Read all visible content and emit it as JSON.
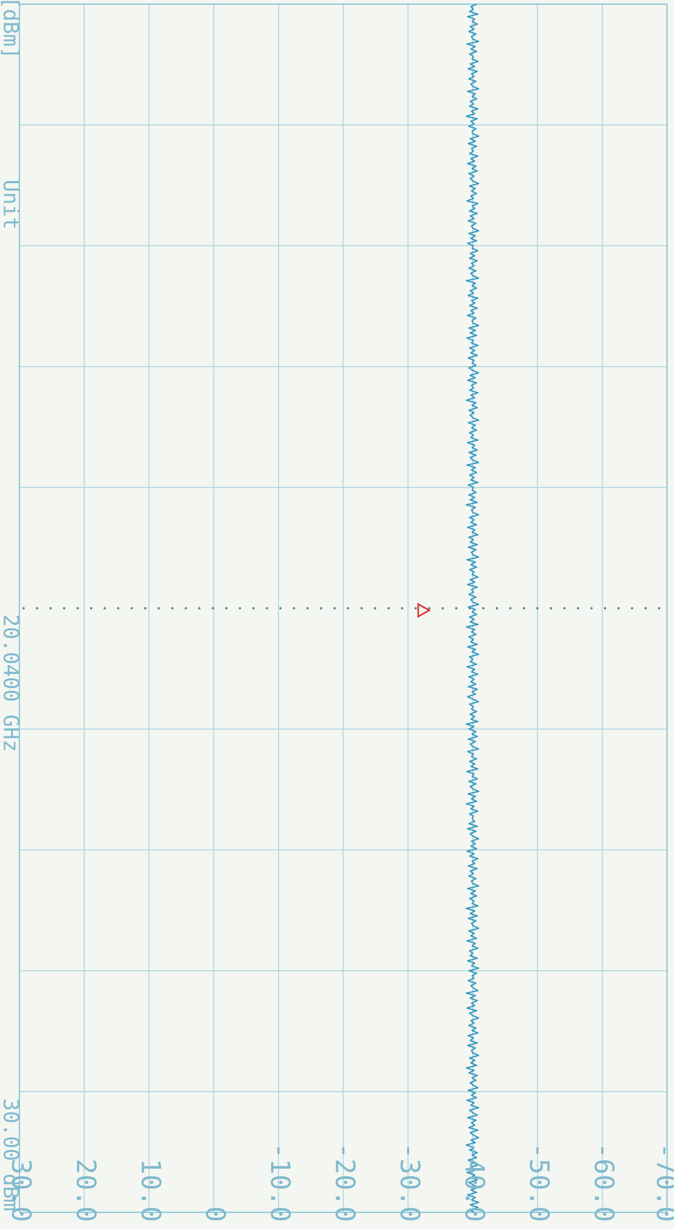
{
  "header": {
    "ref_level": "30.00 dBm",
    "center_freq": "20.0400 GHz",
    "unit": "Unit",
    "unit_value": "[dBm]"
  },
  "chart_data": {
    "type": "line",
    "orientation": "rotated-90-clockwise",
    "title": "",
    "ylabel": "",
    "xlabel": "",
    "ylim": [
      -70,
      30
    ],
    "yticks": [
      "30.0",
      "20.0",
      "10.0",
      "0",
      "-10.0",
      "-20.0",
      "-30.0",
      "-40.0",
      "-50.0",
      "-60.0",
      "-70.0"
    ],
    "x_divisions": 10,
    "grid": true,
    "trace_color": "#2f95c2",
    "grid_color": "#a9d4e2",
    "marker_color": "#e2302d",
    "series": [
      {
        "values": [
          -40.2,
          -39.5,
          -40.8,
          -39.6,
          -40.9,
          -39.8,
          -40.4,
          -39.2,
          -40.6,
          -39.7,
          -40.9,
          -40.1,
          -39.4,
          -40.7,
          -39.8,
          -40.3,
          -39.1,
          -40.5,
          -39.6,
          -40.8,
          -40.0,
          -39.3,
          -40.6,
          -39.9,
          -40.7,
          -39.5,
          -40.2,
          -39.0,
          -40.4,
          -39.7,
          -40.9,
          -40.1,
          -39.6,
          -40.8,
          -39.4,
          -40.3,
          -39.8,
          -40.5,
          -39.2,
          -40.7,
          -40.0,
          -39.5,
          -40.9,
          -39.7,
          -40.2,
          -39.1,
          -40.6,
          -39.8,
          -40.4,
          -39.3,
          -40.8,
          -40.1,
          -39.6,
          -40.5,
          -39.9,
          -40.7,
          -39.4,
          -40.2,
          -39.0,
          -40.6,
          -39.7,
          -40.3,
          -39.5,
          -40.9,
          -40.0,
          -39.8,
          -40.4,
          -39.2,
          -40.7,
          -39.6,
          -40.1,
          -39.3,
          -40.8,
          -39.9,
          -40.5,
          -39.4,
          -40.2,
          -39.7,
          -40.9,
          -40.0,
          -39.5,
          -40.6,
          -39.1,
          -40.3,
          -39.8,
          -40.7,
          -39.6,
          -40.4,
          -39.0,
          -40.8,
          -40.1,
          -39.7,
          -40.5,
          -39.3,
          -40.2,
          -39.9,
          -40.6,
          -39.4,
          -40.9,
          -39.8,
          -40.3,
          -39.2,
          -40.7,
          -39.6,
          -40.0,
          -39.5,
          -40.8,
          -39.9,
          -40.4,
          -39.1,
          -40.6,
          -39.7,
          -40.2,
          -39.4,
          -40.9,
          -40.1,
          -39.8,
          -40.5,
          -39.3,
          -40.7,
          -39.6,
          -40.3,
          -39.0,
          -40.8,
          -39.9,
          -40.2,
          -39.5,
          -40.6,
          -39.7,
          -40.4,
          -39.2,
          -40.9,
          -40.0,
          -39.8,
          -40.5,
          -39.4,
          -40.1,
          -39.6,
          -40.7,
          -39.3,
          -40.3,
          -39.9,
          -40.8,
          -39.5,
          -40.2,
          -39.1,
          -40.6,
          -39.7,
          -40.4,
          -39.8,
          -40.9,
          -40.0,
          -39.6,
          -40.5,
          -39.2,
          -40.7,
          -39.4,
          -40.3,
          -39.9,
          -40.1,
          -39.5,
          -40.8,
          -39.7,
          -40.2,
          -39.0,
          -40.6,
          -39.8,
          -40.4,
          -39.3,
          -40.9,
          -40.0,
          -39.6,
          -40.5,
          -39.4,
          -40.7,
          -39.9,
          -40.2,
          -39.1,
          -40.8,
          -39.7,
          -40.3,
          -39.5,
          -40.6,
          -39.8,
          -40.1,
          -39.2,
          -40.9,
          -40.0,
          -39.6,
          -40.4,
          -39.3,
          -40.7,
          -39.9,
          -40.5,
          -39.4,
          -40.2,
          -39.0,
          -40.8,
          -39.7,
          -40.3,
          -39.6,
          -40.6,
          -39.8,
          -40.1,
          -39.5,
          -40.9,
          -40.0,
          -39.2,
          -40.4,
          -39.9,
          -40.7,
          -39.3,
          -40.5,
          -39.7,
          -40.2,
          -39.4,
          -40.8,
          -39.8,
          -40.3,
          -39.1,
          -40.6,
          -39.6,
          -40.0,
          -39.5,
          -40.9,
          -39.9,
          -40.4,
          -39.2,
          -40.7,
          -39.7,
          -40.1,
          -39.4,
          -40.5,
          -39.8,
          -40.3,
          -39.0,
          -40.8,
          -39.6,
          -40.2,
          -39.5,
          -40.6,
          -39.9,
          -40.4,
          -39.3,
          -40.9,
          -40.0,
          -39.7,
          -40.5,
          -39.4,
          -40.1,
          -39.8,
          -40.7,
          -39.2,
          -40.3,
          -39.6,
          -40.8,
          -39.9,
          -40.2,
          -39.5,
          -40.6,
          -39.7,
          -40.4,
          -39.1,
          -40.9,
          -40.0,
          -39.8,
          -40.5,
          -39.3,
          -40.7,
          -39.6,
          -40.1,
          -39.4,
          -40.8,
          -39.9,
          -40.3,
          -39.2,
          -40.6,
          -39.7,
          -40.2,
          -39.5,
          -40.9,
          -40.0,
          -39.8,
          -40.4,
          -39.0,
          -40.7,
          -39.6,
          -40.3,
          -39.4,
          -40.5,
          -39.9,
          -40.1,
          -39.3,
          -40.8,
          -39.7,
          -40.2,
          -39.5,
          -40.6,
          -39.8,
          -40.4,
          -39.1,
          -40.9,
          -40.0,
          -39.6,
          -40.5,
          -39.4,
          -40.7,
          -39.9,
          -40.3,
          -39.2,
          -40.8,
          -39.7,
          -40.1,
          -39.5,
          -40.6,
          -39.8,
          -40.4,
          -39.3,
          -40.9,
          -40.0,
          -39.6,
          -40.2,
          -39.4,
          -40.7,
          -39.9,
          -40.5,
          -39.0,
          -40.3,
          -39.7,
          -40.8,
          -39.5,
          -40.1,
          -39.8,
          -40.6,
          -39.2,
          -40.4,
          -39.6,
          -40.9,
          -40.0,
          -39.4,
          -40.5,
          -39.9,
          -40.2,
          -39.3,
          -40.7,
          -39.7,
          -40.3,
          -39.5,
          -40.8,
          -39.8,
          -40.1,
          -39.1,
          -40.6,
          -39.6,
          -40.4,
          -39.4,
          -40.9,
          -40.0,
          -39.9,
          -40.5,
          -39.2,
          -40.2,
          -39.7,
          -40.7,
          -39.5,
          -40.3,
          -39.8,
          -40.8,
          -39.3,
          -40.1,
          -39.6,
          -40.6,
          -39.9,
          -40.4,
          -39.0,
          -40.9,
          -40.0,
          -39.7,
          -40.5,
          -39.4,
          -40.2,
          -39.8,
          -40.7,
          -39.5,
          -40.3,
          -39.6,
          -40.8,
          -39.9,
          -40.1,
          -39.2,
          -40.6,
          -39.7,
          -40.4,
          -39.4,
          -40.9,
          -40.0,
          -39.8,
          -40.5,
          -39.3,
          -40.2,
          -39.6,
          -40.7,
          -39.5,
          -40.3,
          -39.9,
          -40.8,
          -39.1,
          -40.1,
          -39.7,
          -40.6,
          -39.8,
          -40.4,
          -39.5,
          -40.9,
          -40.0,
          -39.6,
          -40.2,
          -39.4,
          -40.7,
          -39.9,
          -40.5,
          -39.2,
          -40.3,
          -39.7,
          -40.8,
          -39.5,
          -40.1,
          -39.8,
          -40.6,
          -39.3,
          -40.4,
          -39.6,
          -40.9,
          -40.0,
          -39.9,
          -40.5,
          -39.4,
          -40.2,
          -39.7,
          -40.7,
          -39.0,
          -40.3,
          -39.8,
          -40.8,
          -39.5,
          -40.1,
          -39.6,
          -40.6,
          -39.9,
          -40.4,
          -39.2,
          -40.9,
          -40.0,
          -39.7,
          -40.5,
          -39.4,
          -40.2,
          -39.8,
          -40.7,
          -39.3,
          -40.3,
          -39.6,
          -40.8,
          -39.9,
          -40.1,
          -39.5,
          -40.6,
          -39.7,
          -40.4,
          -39.1,
          -40.9,
          -40.0,
          -39.8,
          -40.5,
          -39.4,
          -40.2,
          -39.6,
          -40.7,
          -39.9,
          -40.3,
          -39.2,
          -40.8,
          -39.5,
          -40.1,
          -39.7,
          -40.6
        ]
      }
    ],
    "marker": {
      "value": -33.5,
      "x_fraction": 0.5,
      "shape": "triangle"
    }
  }
}
